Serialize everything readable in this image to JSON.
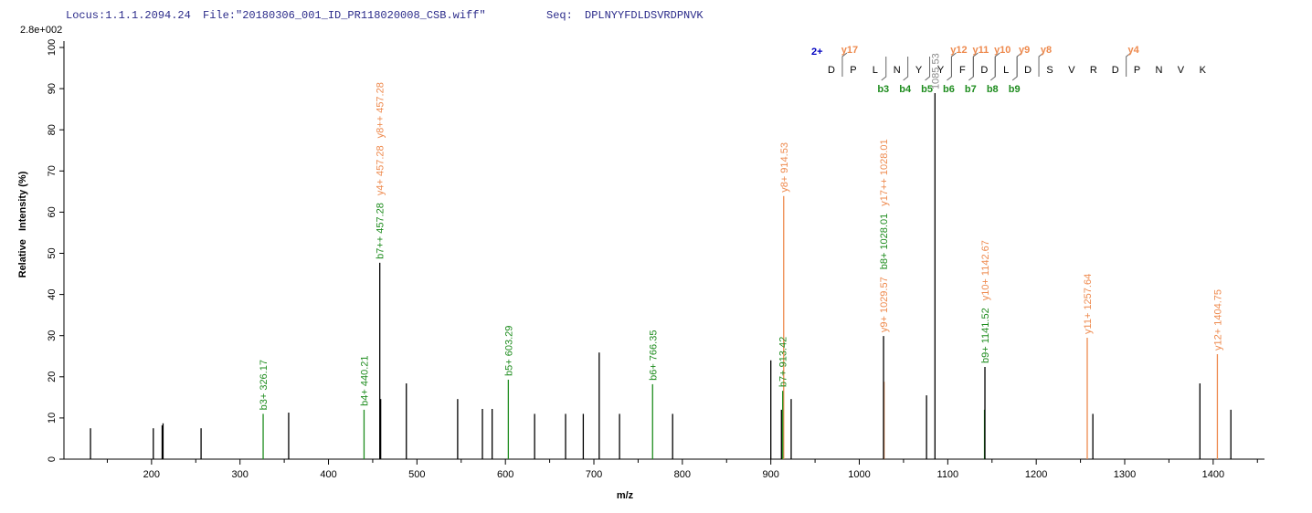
{
  "header": {
    "locus": "Locus:1.1.1.2094.24",
    "file": "File:\"20180306_001_ID_PR118020008_CSB.wiff\"",
    "seq_label": "Seq:",
    "seq": "DPLNYYFDLDSVRDPNVK"
  },
  "chart_data": {
    "type": "spectrum",
    "scale_label": "2.8e+002",
    "xlabel": "m/z",
    "ylabel": "Relative   Intensity (%)",
    "xlim": [
      101,
      1458
    ],
    "ylim": [
      0,
      100
    ],
    "xticks": [
      200,
      300,
      400,
      500,
      600,
      700,
      800,
      900,
      1000,
      1100,
      1200,
      1300,
      1400
    ],
    "x_minor_ticks": [
      150,
      250,
      350,
      450,
      550,
      650,
      750,
      850,
      950,
      1050,
      1150,
      1250,
      1350,
      1450
    ],
    "yticks": [
      0,
      10,
      20,
      30,
      40,
      50,
      60,
      70,
      80,
      90,
      100
    ],
    "peaks": [
      {
        "x": 131,
        "y": 7.5,
        "color": "#000000"
      },
      {
        "x": 202,
        "y": 7.5,
        "color": "#000000"
      },
      {
        "x": 212,
        "y": 8.2,
        "color": "#000000"
      },
      {
        "x": 213,
        "y": 8.7,
        "color": "#000000"
      },
      {
        "x": 256,
        "y": 7.5,
        "color": "#000000"
      },
      {
        "x": 326.17,
        "y": 11,
        "color": "#1e8c1e",
        "labels": [
          {
            "text": "b3+ 326.17",
            "color": "#1e8c1e"
          }
        ]
      },
      {
        "x": 355,
        "y": 11.3,
        "color": "#000000"
      },
      {
        "x": 440.21,
        "y": 12,
        "color": "#1e8c1e",
        "labels": [
          {
            "text": "b4+ 440.21",
            "color": "#1e8c1e"
          }
        ]
      },
      {
        "x": 458,
        "y": 47.7,
        "color": "#000000",
        "labels": [
          {
            "text": "b7++ 457.28",
            "color": "#1e8c1e"
          },
          {
            "text": "y4+ 457.28",
            "color": "#ee8a4e"
          },
          {
            "text": "y8++ 457.28",
            "color": "#ee8a4e"
          }
        ]
      },
      {
        "x": 459,
        "y": 14.6,
        "color": "#000000"
      },
      {
        "x": 488,
        "y": 18.4,
        "color": "#000000"
      },
      {
        "x": 546,
        "y": 14.6,
        "color": "#000000"
      },
      {
        "x": 574,
        "y": 12.2,
        "color": "#000000"
      },
      {
        "x": 585,
        "y": 12.2,
        "color": "#000000"
      },
      {
        "x": 603.29,
        "y": 19.3,
        "color": "#1e8c1e",
        "labels": [
          {
            "text": "b5+ 603.29",
            "color": "#1e8c1e"
          }
        ]
      },
      {
        "x": 633,
        "y": 11,
        "color": "#000000"
      },
      {
        "x": 668,
        "y": 11,
        "color": "#000000"
      },
      {
        "x": 688,
        "y": 11,
        "color": "#000000"
      },
      {
        "x": 706,
        "y": 25.9,
        "color": "#000000"
      },
      {
        "x": 729,
        "y": 11,
        "color": "#000000"
      },
      {
        "x": 766.35,
        "y": 18.2,
        "color": "#1e8c1e",
        "labels": [
          {
            "text": "b6+ 766.35",
            "color": "#1e8c1e"
          }
        ]
      },
      {
        "x": 789,
        "y": 11,
        "color": "#000000"
      },
      {
        "x": 900,
        "y": 24,
        "color": "#000000"
      },
      {
        "x": 912,
        "y": 12,
        "color": "#000000"
      },
      {
        "x": 914.53,
        "y": 63.9,
        "color": "#ee8a4e",
        "labels": [
          {
            "text": "y8+ 914.53",
            "color": "#ee8a4e"
          }
        ]
      },
      {
        "x": 913.42,
        "y": 16.6,
        "color": "#1e8c1e",
        "labels": [
          {
            "text": "b7+ 913.42",
            "color": "#1e8c1e"
          }
        ]
      },
      {
        "x": 923,
        "y": 14.6,
        "color": "#000000"
      },
      {
        "x": 1028.01,
        "y": 18.8,
        "color": "#ee8a4e"
      },
      {
        "x": 1027.4,
        "y": 29.9,
        "color": "#000000",
        "labels": [
          {
            "text": "y9+ 1029.57",
            "color": "#ee8a4e"
          },
          {
            "text": "b8+ 1028.01",
            "color": "#1e8c1e"
          },
          {
            "text": "y17++ 1028.01",
            "color": "#ee8a4e"
          }
        ]
      },
      {
        "x": 1076,
        "y": 15.5,
        "color": "#000000"
      },
      {
        "x": 1085.53,
        "y": 88.9,
        "color": "#000000",
        "labels": [
          {
            "text": "1085.53",
            "color": "#8a8a8a"
          }
        ]
      },
      {
        "x": 1141.52,
        "y": 12,
        "color": "#1e8c1e"
      },
      {
        "x": 1142,
        "y": 22.4,
        "color": "#000000",
        "labels": [
          {
            "text": "b9+ 1141.52",
            "color": "#1e8c1e"
          },
          {
            "text": "y10+ 1142.67",
            "color": "#ee8a4e"
          }
        ]
      },
      {
        "x": 1257.64,
        "y": 29.5,
        "color": "#ee8a4e",
        "labels": [
          {
            "text": "y11+ 1257.64",
            "color": "#ee8a4e"
          }
        ]
      },
      {
        "x": 1264,
        "y": 11,
        "color": "#000000"
      },
      {
        "x": 1385,
        "y": 18.4,
        "color": "#000000"
      },
      {
        "x": 1404.75,
        "y": 25.5,
        "color": "#ee8a4e",
        "labels": [
          {
            "text": "y12+ 1404.75",
            "color": "#ee8a4e"
          }
        ]
      },
      {
        "x": 1420,
        "y": 12,
        "color": "#000000"
      }
    ],
    "fragment_map": {
      "charge": "2+",
      "residues": [
        "D",
        "P",
        "L",
        "N",
        "Y",
        "Y",
        "F",
        "D",
        "L",
        "D",
        "S",
        "V",
        "R",
        "D",
        "P",
        "N",
        "V",
        "K"
      ],
      "b_ions": [
        "b3",
        "b4",
        "b5",
        "b6",
        "b7",
        "b8",
        "b9"
      ],
      "y_ions": [
        "y17",
        "y12",
        "y11",
        "y10",
        "y9",
        "y8",
        "y4"
      ],
      "b_color": "#1e8c1e",
      "y_color": "#ee8a4e"
    }
  }
}
